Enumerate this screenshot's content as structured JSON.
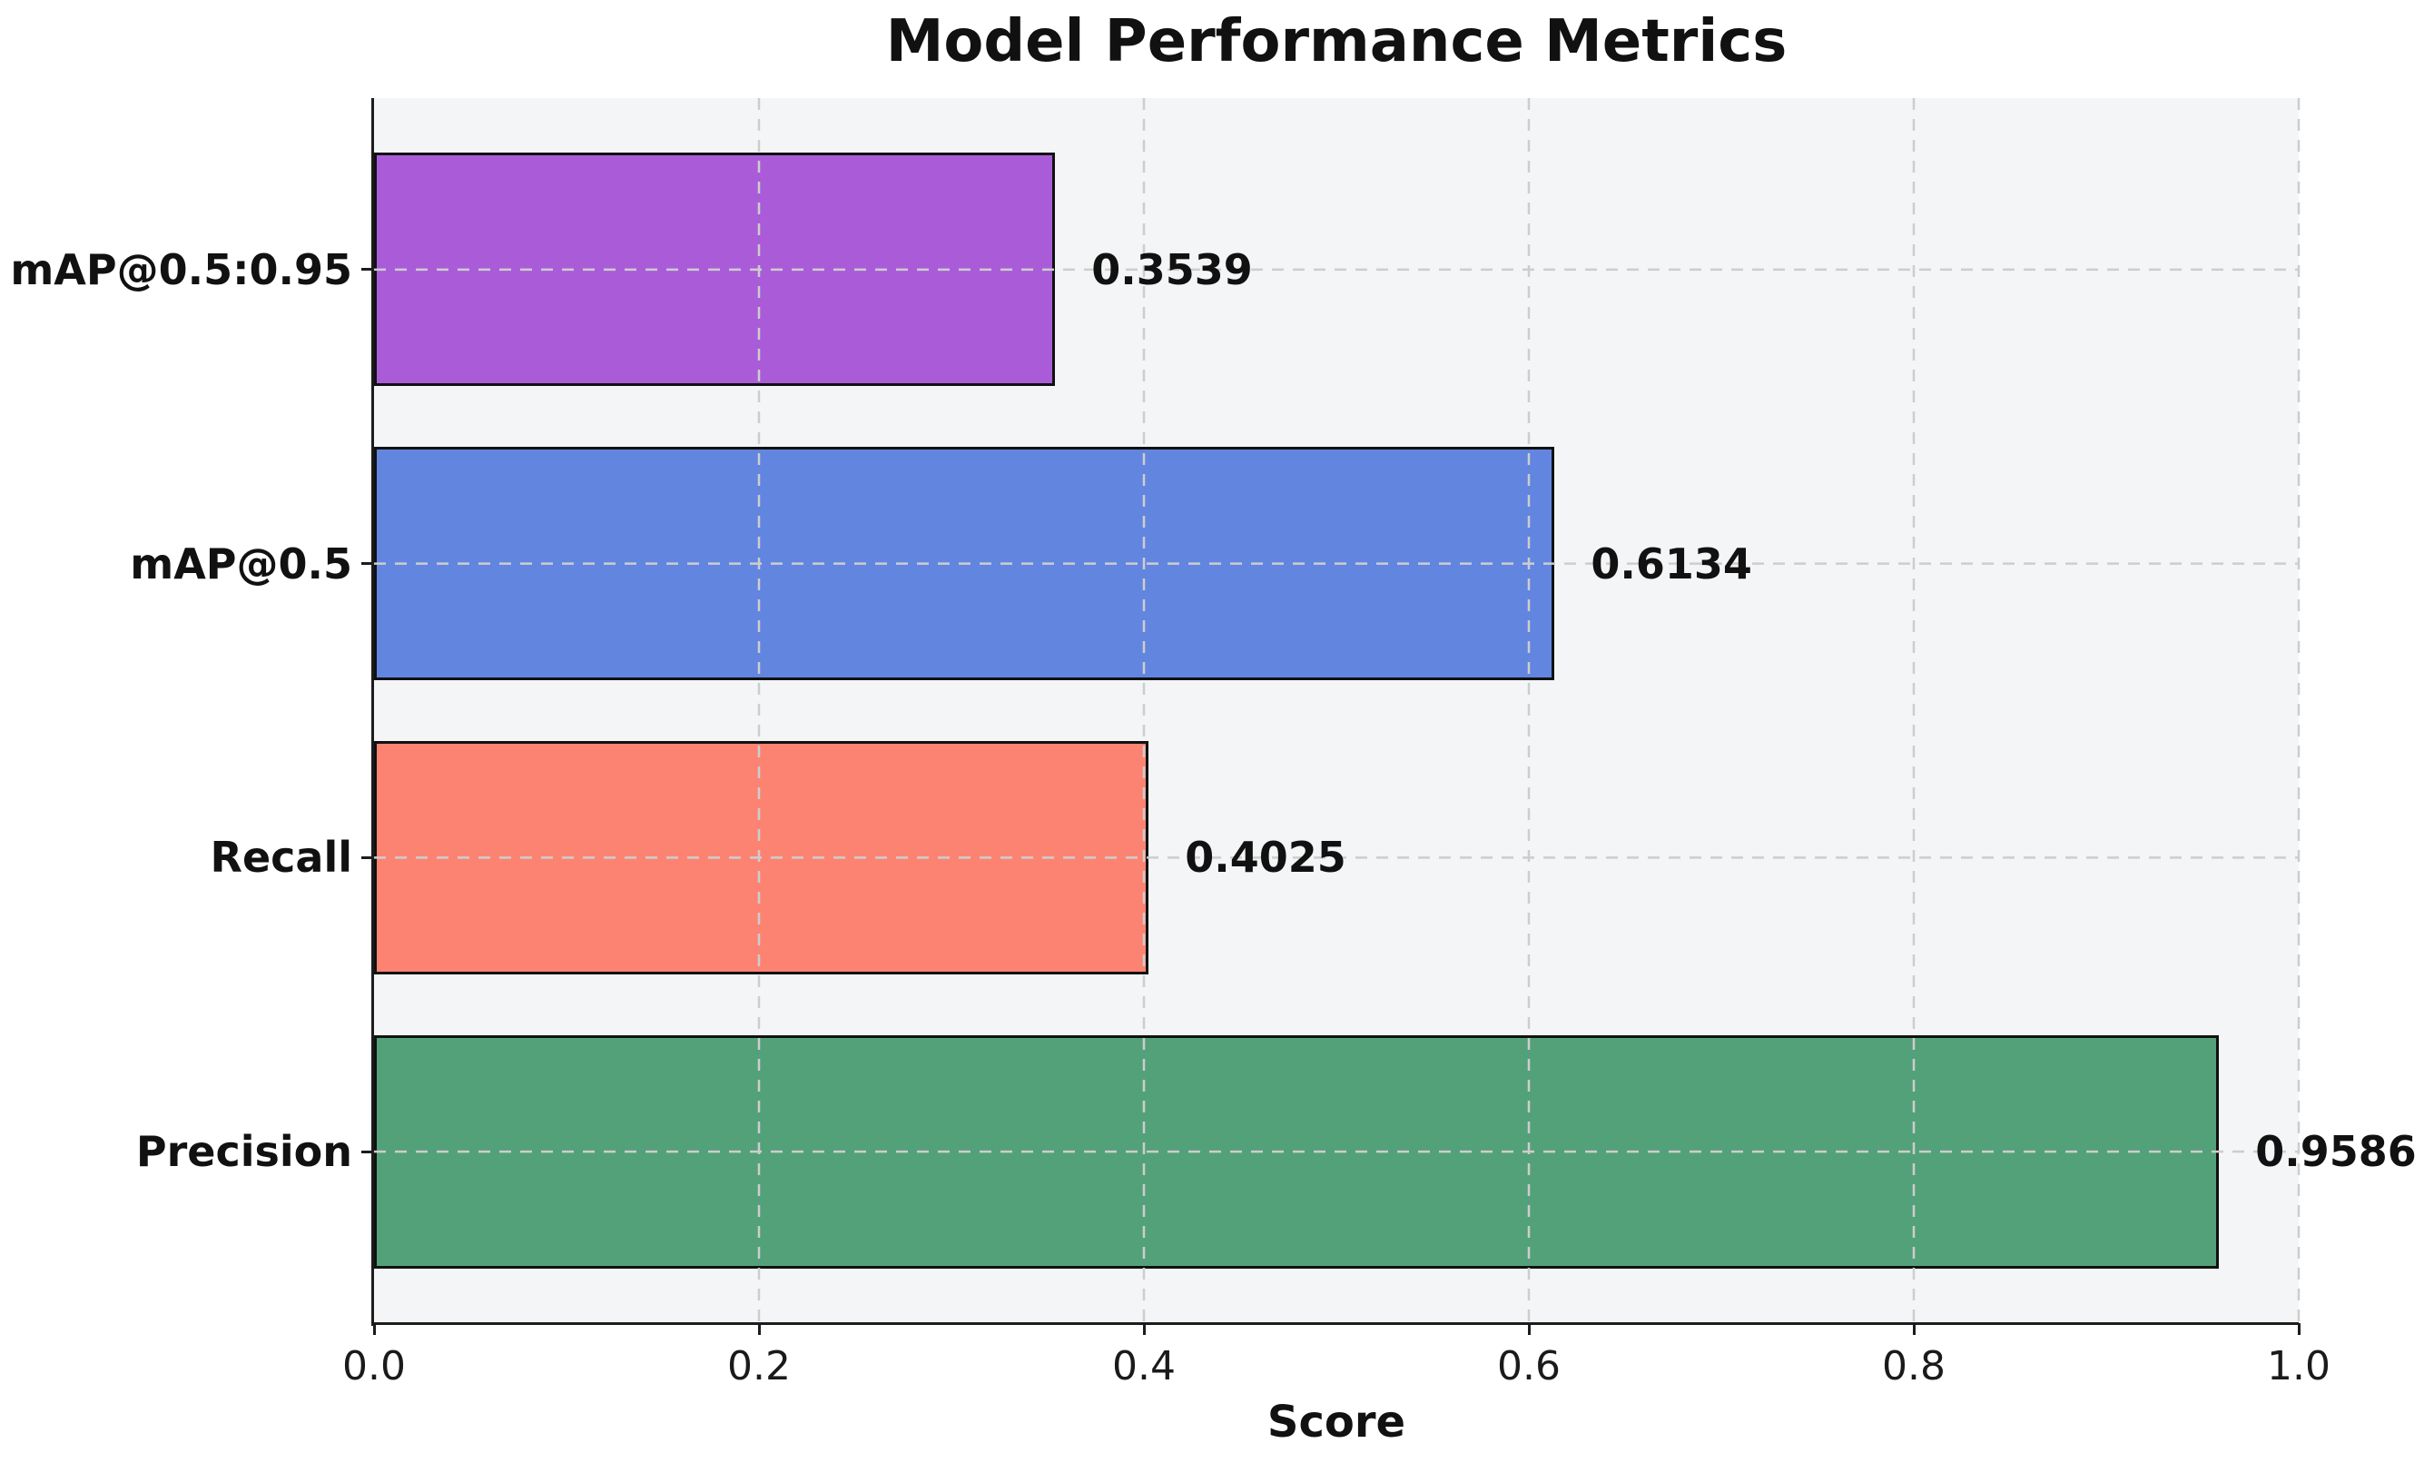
{
  "chart_data": {
    "type": "bar",
    "orientation": "horizontal",
    "title": "Model Performance Metrics",
    "xlabel": "Score",
    "ylabel": "",
    "categories": [
      "mAP@0.5:0.95",
      "mAP@0.5",
      "Recall",
      "Precision"
    ],
    "values": [
      0.3539,
      0.6134,
      0.4025,
      0.9586
    ],
    "value_labels": [
      "0.3539",
      "0.6134",
      "0.4025",
      "0.9586"
    ],
    "bar_colors": [
      "#aa5cd8",
      "#6285e0",
      "#fc8372",
      "#53a178"
    ],
    "bar_edge_color": "#111111",
    "xlim": [
      0.0,
      1.0
    ],
    "xticks": [
      "0.0",
      "0.2",
      "0.4",
      "0.6",
      "0.8",
      "1.0"
    ],
    "grid": true,
    "grid_style": "dashed",
    "grid_color": "#cdcdcd",
    "plot_bg": "#f4f5f7",
    "figure_bg": "#ffffff",
    "legend": "none"
  }
}
